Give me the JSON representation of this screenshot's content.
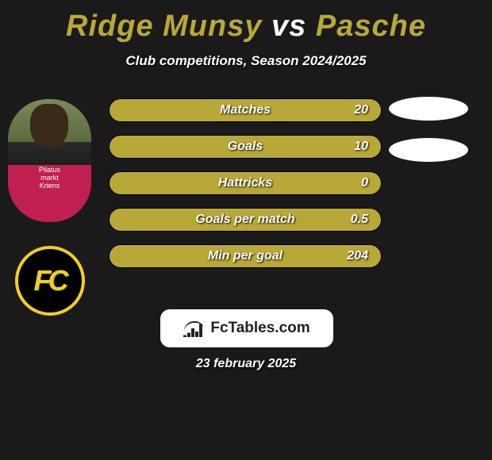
{
  "title": {
    "player1": "Ridge Munsy",
    "vs": "vs",
    "player2": "Pasche",
    "color_player": "#b8a838",
    "color_vs": "#ffffff"
  },
  "subtitle": "Club competitions, Season 2024/2025",
  "player_tag_lines": [
    "Pilatus",
    "markt",
    "Kriens"
  ],
  "club_badge_text": "FC",
  "stats": [
    {
      "label": "Matches",
      "value": "20"
    },
    {
      "label": "Goals",
      "value": "10"
    },
    {
      "label": "Hattricks",
      "value": "0"
    },
    {
      "label": "Goals per match",
      "value": "0.5"
    },
    {
      "label": "Min per goal",
      "value": "204"
    }
  ],
  "bar_color": "#b8a838",
  "site_name": "FcTables.com",
  "date": "23 february 2025"
}
